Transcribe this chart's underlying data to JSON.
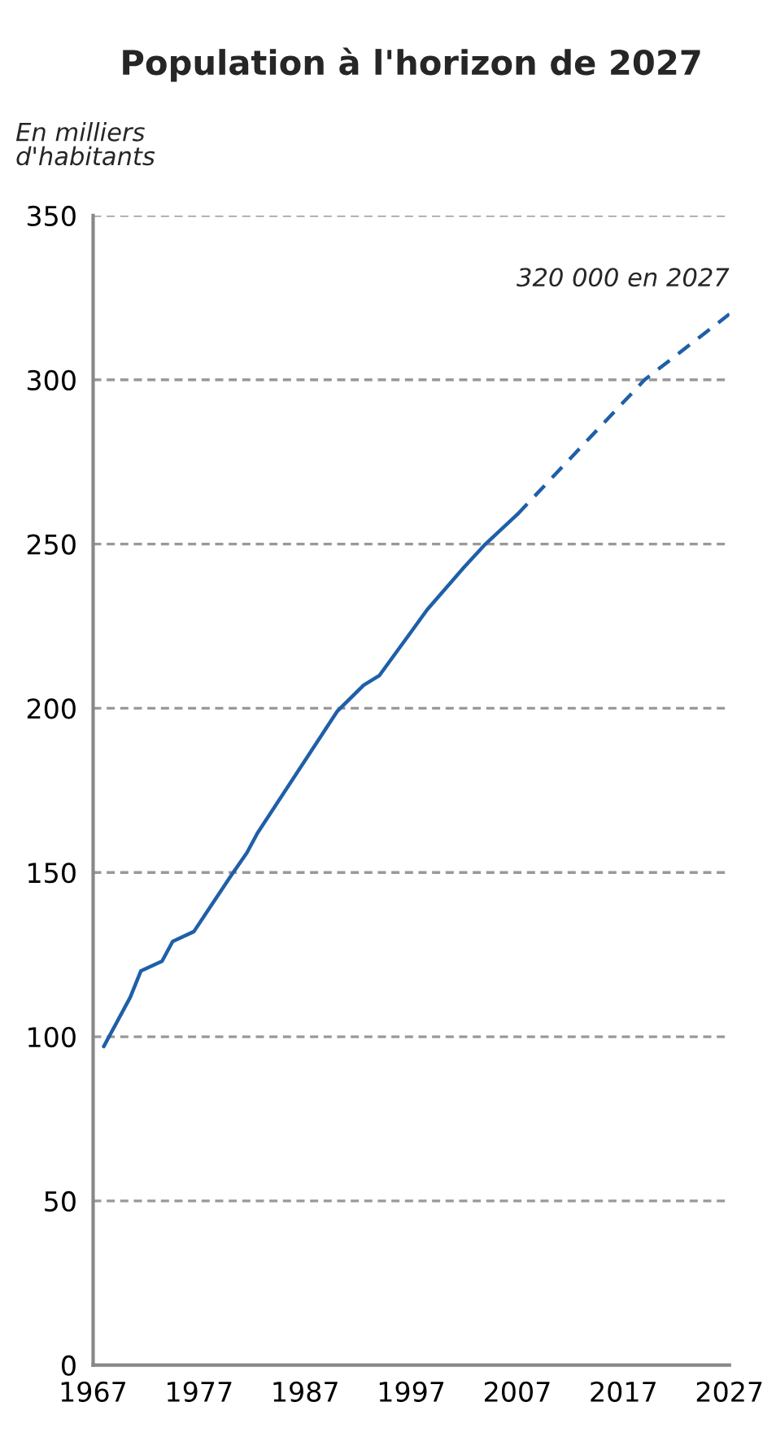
{
  "chart_data": {
    "type": "line",
    "title": "Population à l'horizon de 2027",
    "ylabel": "En milliers\nd'habitants",
    "xlim": [
      1967,
      2027
    ],
    "xticks": [
      1967,
      1977,
      1987,
      1997,
      2007,
      2017,
      2027
    ],
    "ylim": [
      0,
      350
    ],
    "yticks": [
      0,
      50,
      100,
      150,
      200,
      250,
      300,
      350
    ],
    "grid": "y",
    "legend": false,
    "series": [
      {
        "color": "#1f5fa8",
        "line_style": "solid",
        "x": [
          1968,
          1970.5,
          1971.5,
          1973.5,
          1974.5,
          1976.5,
          1980,
          1981.5,
          1982.5,
          1990,
          1992.5,
          1994,
          1998.5,
          2002,
          2004,
          2007
        ],
        "values": [
          97,
          112,
          120,
          123,
          129,
          132,
          149,
          156,
          162,
          199,
          207,
          210,
          230,
          243,
          250,
          259
        ]
      },
      {
        "color": "#1f5fa8",
        "line_style": "dashed",
        "x": [
          2007,
          2019,
          2027
        ],
        "values": [
          259,
          300,
          320
        ]
      }
    ],
    "annotations": [
      {
        "text": "320 000 en 2027",
        "x": 2027,
        "y": 320
      }
    ]
  }
}
